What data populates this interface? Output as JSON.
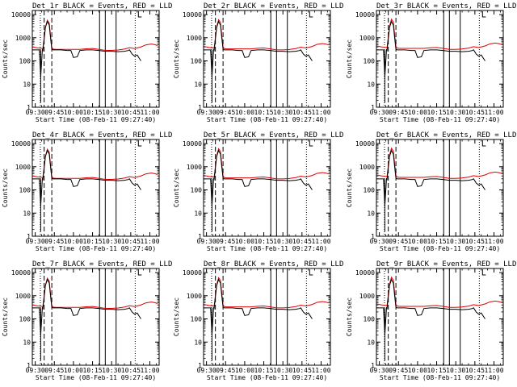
{
  "chart_data": [
    {
      "type": "line",
      "title": "Det_1r BLACK = Events, RED = LLD"
    },
    {
      "type": "line",
      "title": "Det_2r BLACK = Events, RED = LLD"
    },
    {
      "type": "line",
      "title": "Det_3r BLACK = Events, RED = LLD"
    },
    {
      "type": "line",
      "title": "Det_4r BLACK = Events, RED = LLD"
    },
    {
      "type": "line",
      "title": "Det_5r BLACK = Events, RED = LLD"
    },
    {
      "type": "line",
      "title": "Det_6r BLACK = Events, RED = LLD"
    },
    {
      "type": "line",
      "title": "Det_7r BLACK = Events, RED = LLD"
    },
    {
      "type": "line",
      "title": "Det_8r BLACK = Events, RED = LLD"
    },
    {
      "type": "line",
      "title": "Det_9r BLACK = Events, RED = LLD"
    }
  ],
  "common": {
    "xlabel": "Start Time (08-Feb-11 09:27:40)",
    "ylabel": "Counts/sec",
    "x_ticks": [
      "09:30",
      "09:45",
      "10:00",
      "10:15",
      "10:30",
      "10:45",
      "11:00"
    ],
    "x_tick_minutes": [
      30,
      45,
      60,
      75,
      90,
      105,
      120
    ],
    "xlim": [
      27.7,
      127.3
    ],
    "y_ticks": [
      "1",
      "10",
      "100",
      "1000",
      "10000"
    ],
    "y_tick_values": [
      1,
      10,
      100,
      1000,
      10000
    ],
    "ylim": [
      1,
      15000
    ],
    "yscale": "log",
    "colors": {
      "events": "#000000",
      "lld": "#e00000",
      "axes": "#000000"
    },
    "vlines_solid": [
      80.5,
      85.0,
      93.5
    ],
    "vlines_dashed": [
      37.0,
      43.0
    ],
    "vlines_dotted": [
      34.0,
      108.5
    ],
    "events_x": [
      28,
      32,
      33.2,
      34.3,
      35.6,
      36.0,
      38,
      39.5,
      41,
      42,
      43,
      44,
      46,
      50,
      55,
      58,
      60,
      63,
      65,
      70,
      75,
      80,
      85,
      90,
      95,
      100,
      103,
      104,
      106,
      108,
      110,
      113
    ],
    "events_y": [
      300,
      300,
      300,
      20,
      300,
      280,
      2800,
      5000,
      3500,
      1000,
      320,
      300,
      300,
      300,
      280,
      280,
      140,
      150,
      280,
      300,
      300,
      280,
      260,
      260,
      250,
      260,
      280,
      300,
      200,
      160,
      180,
      100
    ],
    "lld_x": [
      28,
      32,
      36,
      38,
      39.5,
      41,
      42,
      43,
      44,
      46,
      50,
      55,
      60,
      65,
      70,
      75,
      80,
      85,
      90,
      95,
      100,
      104,
      108,
      113,
      117,
      121,
      124,
      126
    ],
    "lld_y": [
      420,
      380,
      360,
      3000,
      6000,
      4500,
      1300,
      400,
      340,
      330,
      330,
      330,
      330,
      330,
      350,
      360,
      330,
      300,
      300,
      310,
      340,
      390,
      360,
      420,
      520,
      560,
      530,
      480
    ]
  }
}
